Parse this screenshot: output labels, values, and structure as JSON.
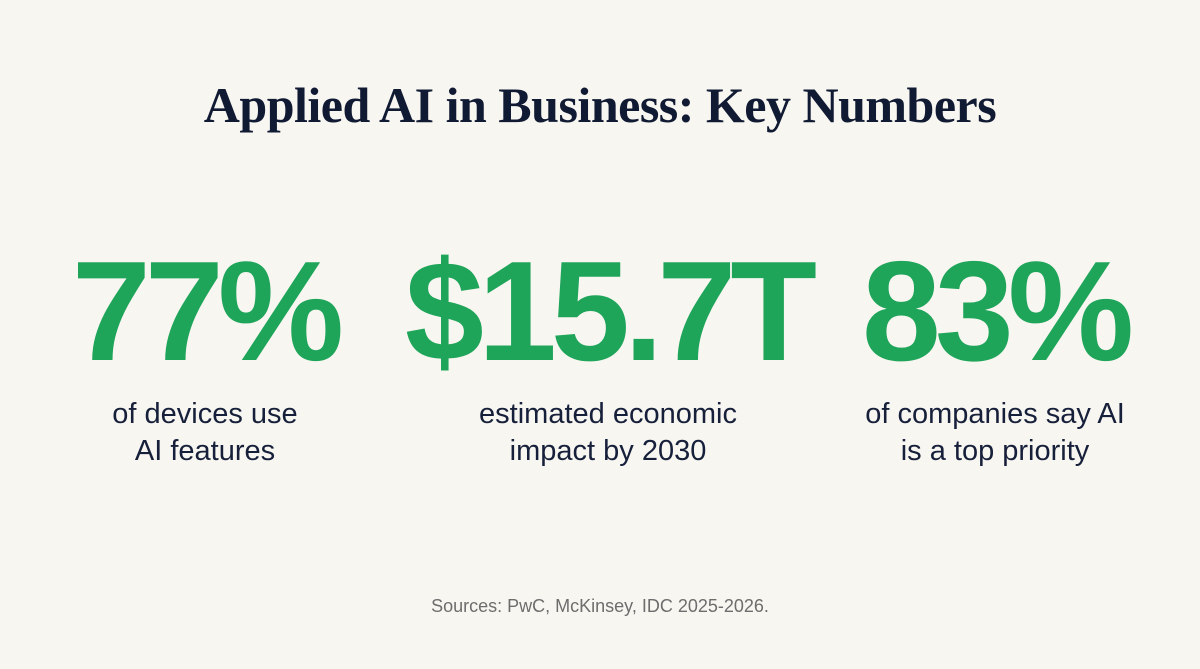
{
  "header": {
    "title": "Applied AI in Business: Key Numbers"
  },
  "stats": [
    {
      "value": "77%",
      "lines": [
        "of devices use",
        "AI features"
      ]
    },
    {
      "value": "$15.7T",
      "lines": [
        "estimated economic",
        "impact by 2030"
      ]
    },
    {
      "value": "83%",
      "lines": [
        "of companies say AI",
        "is a top priority"
      ]
    }
  ],
  "footer": {
    "source": "Sources: PwC, McKinsey, IDC 2025-2026."
  }
}
